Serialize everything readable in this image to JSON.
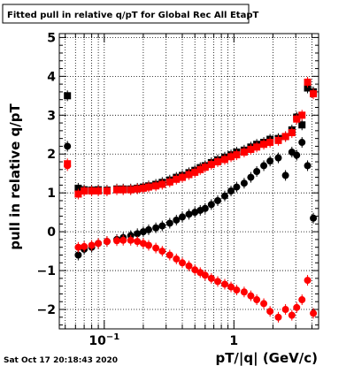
{
  "footer": {
    "timestamp": "Sat Oct 17 20:18:43 2020"
  },
  "chart_data": {
    "type": "scatter",
    "title": "Fitted pull in relative q/pT for Global Rec All EtapT",
    "xlabel": "pT/|q| (GeV/c)",
    "ylabel": "pull in relative q/pT",
    "xscale": "log",
    "xlim": [
      0.045,
      4.5
    ],
    "ylim": [
      -2.5,
      5.1
    ],
    "x_ticks": [
      {
        "value": 0.1,
        "label": "10",
        "sup": "-1"
      },
      {
        "value": 1,
        "label": "1",
        "sup": ""
      }
    ],
    "y_ticks": [
      -2,
      -1,
      0,
      1,
      2,
      3,
      4,
      5
    ],
    "grid": true,
    "colors": {
      "black": "#000000",
      "red": "#ff0000"
    },
    "series": [
      {
        "marker": "square",
        "color": "#000000",
        "points": [
          [
            0.052,
            3.5
          ],
          [
            0.063,
            1.12
          ],
          [
            0.07,
            1.08
          ],
          [
            0.08,
            1.07
          ],
          [
            0.09,
            1.08
          ],
          [
            0.105,
            1.07
          ],
          [
            0.125,
            1.1
          ],
          [
            0.14,
            1.1
          ],
          [
            0.16,
            1.1
          ],
          [
            0.18,
            1.12
          ],
          [
            0.2,
            1.15
          ],
          [
            0.22,
            1.18
          ],
          [
            0.25,
            1.22
          ],
          [
            0.28,
            1.27
          ],
          [
            0.32,
            1.33
          ],
          [
            0.36,
            1.4
          ],
          [
            0.4,
            1.45
          ],
          [
            0.45,
            1.52
          ],
          [
            0.5,
            1.58
          ],
          [
            0.55,
            1.65
          ],
          [
            0.6,
            1.7
          ],
          [
            0.67,
            1.78
          ],
          [
            0.75,
            1.85
          ],
          [
            0.85,
            1.92
          ],
          [
            0.95,
            1.98
          ],
          [
            1.05,
            2.05
          ],
          [
            1.2,
            2.1
          ],
          [
            1.35,
            2.18
          ],
          [
            1.5,
            2.25
          ],
          [
            1.7,
            2.3
          ],
          [
            1.9,
            2.38
          ],
          [
            2.2,
            2.4
          ],
          [
            2.5,
            2.45
          ],
          [
            2.8,
            2.62
          ],
          [
            3.05,
            2.95
          ],
          [
            3.35,
            2.75
          ],
          [
            3.7,
            3.7
          ],
          [
            4.1,
            3.6
          ]
        ]
      },
      {
        "marker": "square",
        "color": "#ff0000",
        "points": [
          [
            0.052,
            1.75
          ],
          [
            0.063,
            0.97
          ],
          [
            0.07,
            1.05
          ],
          [
            0.08,
            1.05
          ],
          [
            0.09,
            1.05
          ],
          [
            0.105,
            1.05
          ],
          [
            0.125,
            1.08
          ],
          [
            0.14,
            1.08
          ],
          [
            0.16,
            1.08
          ],
          [
            0.18,
            1.1
          ],
          [
            0.2,
            1.12
          ],
          [
            0.22,
            1.15
          ],
          [
            0.25,
            1.18
          ],
          [
            0.28,
            1.22
          ],
          [
            0.32,
            1.28
          ],
          [
            0.36,
            1.35
          ],
          [
            0.4,
            1.4
          ],
          [
            0.45,
            1.47
          ],
          [
            0.5,
            1.53
          ],
          [
            0.55,
            1.6
          ],
          [
            0.6,
            1.66
          ],
          [
            0.67,
            1.73
          ],
          [
            0.75,
            1.8
          ],
          [
            0.85,
            1.86
          ],
          [
            0.95,
            1.93
          ],
          [
            1.05,
            1.98
          ],
          [
            1.2,
            2.05
          ],
          [
            1.35,
            2.12
          ],
          [
            1.5,
            2.18
          ],
          [
            1.7,
            2.25
          ],
          [
            1.9,
            2.3
          ],
          [
            2.2,
            2.35
          ],
          [
            2.5,
            2.45
          ],
          [
            2.8,
            2.55
          ],
          [
            3.05,
            2.9
          ],
          [
            3.35,
            3.0
          ],
          [
            3.7,
            3.85
          ],
          [
            4.1,
            3.55
          ]
        ]
      },
      {
        "marker": "circle",
        "color": "#000000",
        "points": [
          [
            0.052,
            2.2
          ],
          [
            0.063,
            -0.6
          ],
          [
            0.07,
            -0.45
          ],
          [
            0.08,
            -0.4
          ],
          [
            0.09,
            -0.3
          ],
          [
            0.105,
            -0.25
          ],
          [
            0.125,
            -0.2
          ],
          [
            0.14,
            -0.15
          ],
          [
            0.16,
            -0.1
          ],
          [
            0.18,
            -0.05
          ],
          [
            0.2,
            0.0
          ],
          [
            0.22,
            0.05
          ],
          [
            0.25,
            0.1
          ],
          [
            0.28,
            0.15
          ],
          [
            0.32,
            0.22
          ],
          [
            0.36,
            0.3
          ],
          [
            0.4,
            0.38
          ],
          [
            0.45,
            0.45
          ],
          [
            0.5,
            0.5
          ],
          [
            0.55,
            0.55
          ],
          [
            0.6,
            0.6
          ],
          [
            0.67,
            0.7
          ],
          [
            0.75,
            0.8
          ],
          [
            0.85,
            0.92
          ],
          [
            0.95,
            1.05
          ],
          [
            1.05,
            1.15
          ],
          [
            1.2,
            1.25
          ],
          [
            1.35,
            1.4
          ],
          [
            1.5,
            1.55
          ],
          [
            1.7,
            1.7
          ],
          [
            1.9,
            1.82
          ],
          [
            2.2,
            1.9
          ],
          [
            2.5,
            1.45
          ],
          [
            2.8,
            2.05
          ],
          [
            3.05,
            1.97
          ],
          [
            3.35,
            2.3
          ],
          [
            3.7,
            1.7
          ],
          [
            4.1,
            0.35
          ]
        ]
      },
      {
        "marker": "circle",
        "color": "#ff0000",
        "points": [
          [
            0.052,
            1.7
          ],
          [
            0.063,
            -0.4
          ],
          [
            0.07,
            -0.38
          ],
          [
            0.08,
            -0.35
          ],
          [
            0.09,
            -0.3
          ],
          [
            0.105,
            -0.25
          ],
          [
            0.125,
            -0.23
          ],
          [
            0.14,
            -0.22
          ],
          [
            0.16,
            -0.22
          ],
          [
            0.18,
            -0.25
          ],
          [
            0.2,
            -0.3
          ],
          [
            0.22,
            -0.35
          ],
          [
            0.25,
            -0.42
          ],
          [
            0.28,
            -0.5
          ],
          [
            0.32,
            -0.6
          ],
          [
            0.36,
            -0.7
          ],
          [
            0.4,
            -0.8
          ],
          [
            0.45,
            -0.88
          ],
          [
            0.5,
            -0.98
          ],
          [
            0.55,
            -1.05
          ],
          [
            0.6,
            -1.12
          ],
          [
            0.67,
            -1.2
          ],
          [
            0.75,
            -1.28
          ],
          [
            0.85,
            -1.35
          ],
          [
            0.95,
            -1.42
          ],
          [
            1.05,
            -1.5
          ],
          [
            1.2,
            -1.55
          ],
          [
            1.35,
            -1.65
          ],
          [
            1.5,
            -1.75
          ],
          [
            1.7,
            -1.85
          ],
          [
            1.9,
            -2.05
          ],
          [
            2.2,
            -2.2
          ],
          [
            2.5,
            -2.0
          ],
          [
            2.8,
            -2.15
          ],
          [
            3.05,
            -1.95
          ],
          [
            3.35,
            -1.75
          ],
          [
            3.7,
            -1.25
          ],
          [
            4.1,
            -2.1
          ]
        ]
      }
    ]
  }
}
